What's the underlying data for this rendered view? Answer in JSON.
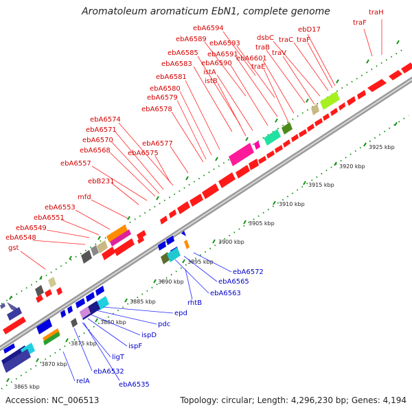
{
  "title": "Aromatoleum aromaticum EbN1, complete genome",
  "footer": {
    "accession": "Accession: NC_006513",
    "topology": "Topology: circular; Length: 4,296,230 bp; Genes: 4,194"
  },
  "colors": {
    "forward_gene": "#ff1a1a",
    "reverse_gene": "#0000e0",
    "tick": "#008000",
    "backbone": "#a8a8a8"
  },
  "ticks": [
    "3865 kbp",
    "3870 kbp",
    "3875 kbp",
    "3880 kbp",
    "3885 kbp",
    "3890 kbp",
    "3895 kbp",
    "3900 kbp",
    "3905 kbp",
    "3910 kbp",
    "3915 kbp",
    "3920 kbp",
    "3925 kbp"
  ],
  "forward_genes": [
    "traH",
    "traF",
    "ebD17",
    "traC",
    "dsbC",
    "traF",
    "ebA6594",
    "ebA6593",
    "traB",
    "ebA6589",
    "traV",
    "ebA6601",
    "ebA6591",
    "traE",
    "ebA6585",
    "ebA6590",
    "ebA6583",
    "istA",
    "istB",
    "ebA6581",
    "ebA6580",
    "ebA6579",
    "ebA6578",
    "ebA6574",
    "ebA6571",
    "ebA6577",
    "ebA6570",
    "ebA6575",
    "ebA6568",
    "ebA6557",
    "ebB231",
    "mfd",
    "ebA6553",
    "ebA6551",
    "ebA6549",
    "ebA6548",
    "gst"
  ],
  "reverse_genes": [
    "ebA6572",
    "ebA6565",
    "ebA6563",
    "rhtB",
    "epd",
    "pdc",
    "ispD",
    "ispF",
    "ligT",
    "ebA6532",
    "relA",
    "ebA6535"
  ]
}
